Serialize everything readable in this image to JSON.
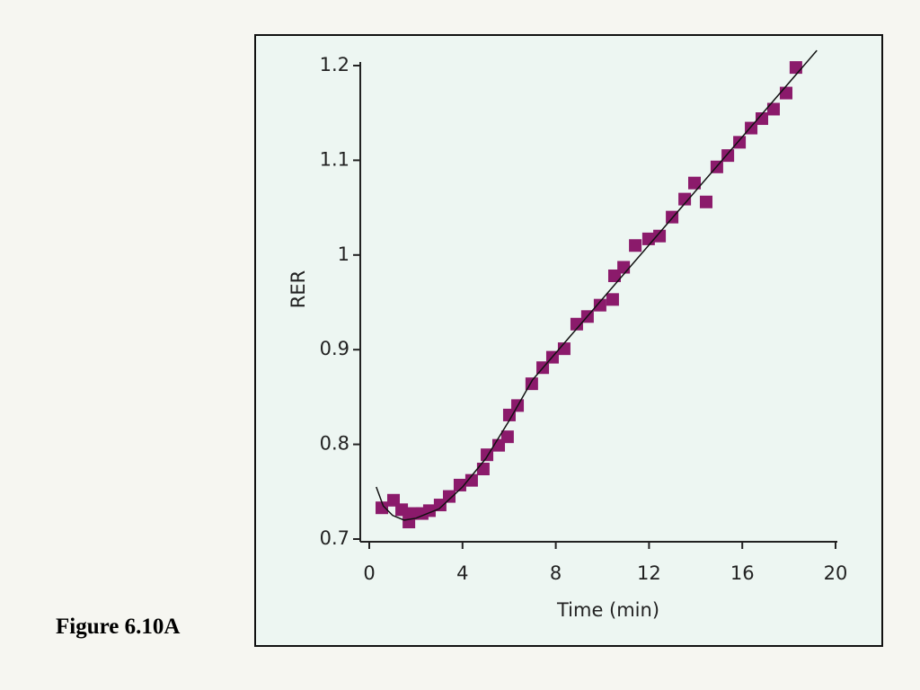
{
  "slide": {
    "caption": "Figure 6.10A"
  },
  "chart_data": {
    "type": "scatter",
    "x_label": "Time (min)",
    "y_label": "RER",
    "xlim": [
      0,
      20
    ],
    "xticks": [
      0,
      4,
      8,
      12,
      16,
      20
    ],
    "ylim": [
      0.7,
      1.2
    ],
    "yticks": [
      0.7,
      0.8,
      0.9,
      1,
      1.1,
      1.2
    ],
    "series": [
      {
        "type": "scatter",
        "color": "#8b1a6b",
        "x": [
          0.54,
          1.04,
          1.39,
          1.7,
          1.89,
          2.27,
          2.58,
          3.04,
          3.43,
          3.89,
          4.39,
          4.89,
          5.05,
          5.55,
          5.93,
          6.01,
          6.36,
          6.97,
          7.44,
          7.86,
          8.36,
          8.9,
          9.36,
          9.9,
          10.44,
          10.52,
          10.91,
          11.41,
          11.98,
          12.45,
          12.99,
          13.53,
          13.95,
          14.45,
          14.91,
          15.38,
          15.88,
          16.38,
          16.84,
          17.34,
          17.88,
          18.3
        ],
        "values": [
          0.733,
          0.741,
          0.731,
          0.718,
          0.727,
          0.727,
          0.73,
          0.736,
          0.745,
          0.757,
          0.762,
          0.774,
          0.789,
          0.799,
          0.808,
          0.831,
          0.841,
          0.864,
          0.881,
          0.892,
          0.901,
          0.927,
          0.935,
          0.947,
          0.953,
          0.978,
          0.987,
          1.01,
          1.017,
          1.02,
          1.04,
          1.059,
          1.076,
          1.056,
          1.093,
          1.105,
          1.119,
          1.134,
          1.144,
          1.154,
          1.171,
          1.198
        ]
      },
      {
        "type": "line",
        "color": "#111111",
        "x": [
          0.3,
          0.6,
          1.0,
          1.5,
          2.0,
          3.0,
          4.0,
          5.0,
          6.0,
          7.0,
          19.2
        ],
        "values": [
          0.755,
          0.735,
          0.725,
          0.72,
          0.722,
          0.732,
          0.755,
          0.785,
          0.825,
          0.868,
          1.216
        ]
      }
    ]
  }
}
